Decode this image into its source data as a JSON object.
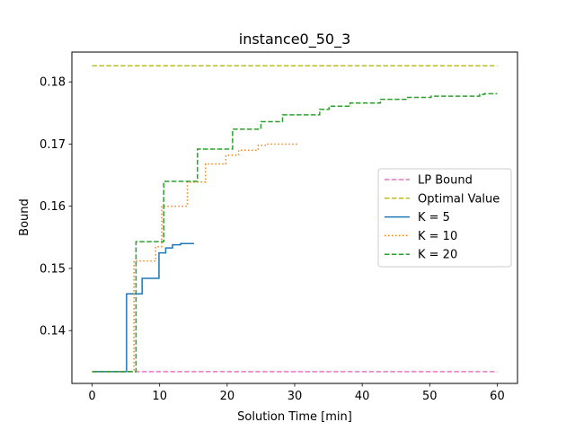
{
  "chart_data": {
    "type": "line",
    "title": "instance0_50_3",
    "xlabel": "Solution Time [min]",
    "ylabel": "Bound",
    "xlim": [
      -3,
      63
    ],
    "ylim": [
      0.1315,
      0.1848
    ],
    "xticks": [
      0,
      10,
      20,
      30,
      40,
      50,
      60
    ],
    "yticks": [
      0.14,
      0.15,
      0.16,
      0.17,
      0.18
    ],
    "xtick_labels": [
      "0",
      "10",
      "20",
      "30",
      "40",
      "50",
      "60"
    ],
    "ytick_labels": [
      "0.14",
      "0.15",
      "0.16",
      "0.17",
      "0.18"
    ],
    "grid": false,
    "legend_position": "center-right",
    "series": [
      {
        "name": "LP Bound",
        "color": "#e377c2",
        "dash": "dashed",
        "step": false,
        "points": [
          [
            0,
            0.1334
          ],
          [
            60,
            0.1334
          ]
        ]
      },
      {
        "name": "Optimal Value",
        "color": "#bcbd22",
        "dash": "dashed",
        "step": false,
        "points": [
          [
            0,
            0.1826
          ],
          [
            60,
            0.1826
          ]
        ]
      },
      {
        "name": "K = 5",
        "color": "#1f77b4",
        "dash": "solid",
        "step": true,
        "points": [
          [
            0,
            0.1334
          ],
          [
            5.1,
            0.1459
          ],
          [
            7.4,
            0.1484
          ],
          [
            9.9,
            0.1525
          ],
          [
            10.9,
            0.1533
          ],
          [
            11.9,
            0.1538
          ],
          [
            13.1,
            0.154
          ],
          [
            15.1,
            0.154
          ]
        ]
      },
      {
        "name": "K = 10",
        "color": "#ff7f0e",
        "dash": "dotted",
        "step": true,
        "points": [
          [
            0,
            0.1334
          ],
          [
            6.2,
            0.1512
          ],
          [
            9.4,
            0.1535
          ],
          [
            10.3,
            0.16
          ],
          [
            14.1,
            0.1639
          ],
          [
            16.8,
            0.1668
          ],
          [
            19.8,
            0.1682
          ],
          [
            21.7,
            0.169
          ],
          [
            24.6,
            0.1698
          ],
          [
            25.8,
            0.17
          ],
          [
            30.6,
            0.17
          ]
        ]
      },
      {
        "name": "K = 20",
        "color": "#2ca02c",
        "dash": "dashed",
        "step": true,
        "points": [
          [
            0,
            0.1334
          ],
          [
            6.5,
            0.1543
          ],
          [
            10.6,
            0.164
          ],
          [
            15.6,
            0.1692
          ],
          [
            20.8,
            0.1724
          ],
          [
            25.0,
            0.1736
          ],
          [
            28.2,
            0.1747
          ],
          [
            33.7,
            0.1756
          ],
          [
            35.1,
            0.1761
          ],
          [
            38.2,
            0.1766
          ],
          [
            42.7,
            0.1772
          ],
          [
            46.6,
            0.1775
          ],
          [
            50.2,
            0.1777
          ],
          [
            57.4,
            0.178
          ],
          [
            58.1,
            0.1781
          ],
          [
            60.0,
            0.1781
          ]
        ]
      }
    ]
  }
}
